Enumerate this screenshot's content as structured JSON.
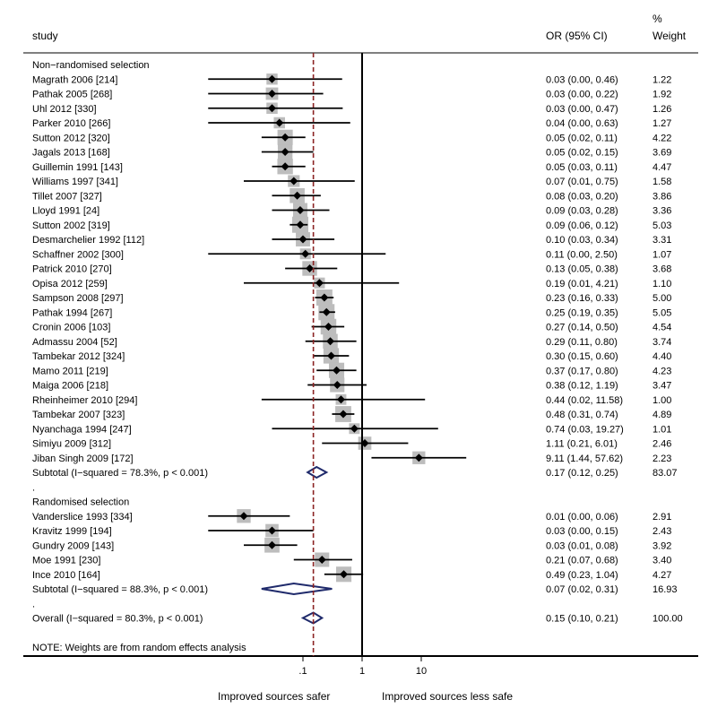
{
  "header": {
    "study_label": "study",
    "or_label": "OR (95% CI)",
    "weight_label_1": "%",
    "weight_label_2": "Weight"
  },
  "footer": {
    "note": "NOTE: Weights are from random effects analysis",
    "xlabel_left": "Improved sources safer",
    "xlabel_right": "Improved sources less safe"
  },
  "chart_data": {
    "type": "forest",
    "x_scale": "log",
    "x_ticks": [
      0.1,
      1,
      10
    ],
    "x_tick_labels": [
      ".1",
      "1",
      "10"
    ],
    "null_line": 1,
    "overall_line": 0.15,
    "rows": [
      {
        "kind": "group",
        "label": "Non−randomised selection"
      },
      {
        "kind": "study",
        "label": "Magrath 2006 [214]",
        "or": 0.03,
        "lo": 0.0,
        "hi": 0.46,
        "ci": "0.03 (0.00, 0.46)",
        "weight": "1.22"
      },
      {
        "kind": "study",
        "label": "Pathak 2005 [268]",
        "or": 0.03,
        "lo": 0.0,
        "hi": 0.22,
        "ci": "0.03 (0.00, 0.22)",
        "weight": "1.92"
      },
      {
        "kind": "study",
        "label": "Uhl 2012 [330]",
        "or": 0.03,
        "lo": 0.0,
        "hi": 0.47,
        "ci": "0.03 (0.00, 0.47)",
        "weight": "1.26"
      },
      {
        "kind": "study",
        "label": "Parker 2010 [266]",
        "or": 0.04,
        "lo": 0.0,
        "hi": 0.63,
        "ci": "0.04 (0.00, 0.63)",
        "weight": "1.27"
      },
      {
        "kind": "study",
        "label": "Sutton 2012 [320]",
        "or": 0.05,
        "lo": 0.02,
        "hi": 0.11,
        "ci": "0.05 (0.02, 0.11)",
        "weight": "4.22"
      },
      {
        "kind": "study",
        "label": "Jagals 2013 [168]",
        "or": 0.05,
        "lo": 0.02,
        "hi": 0.15,
        "ci": "0.05 (0.02, 0.15)",
        "weight": "3.69"
      },
      {
        "kind": "study",
        "label": "Guillemin 1991 [143]",
        "or": 0.05,
        "lo": 0.03,
        "hi": 0.11,
        "ci": "0.05 (0.03, 0.11)",
        "weight": "4.47"
      },
      {
        "kind": "study",
        "label": "Williams 1997 [341]",
        "or": 0.07,
        "lo": 0.01,
        "hi": 0.75,
        "ci": "0.07 (0.01, 0.75)",
        "weight": "1.58"
      },
      {
        "kind": "study",
        "label": "Tillet 2007 [327]",
        "or": 0.08,
        "lo": 0.03,
        "hi": 0.2,
        "ci": "0.08 (0.03, 0.20)",
        "weight": "3.86"
      },
      {
        "kind": "study",
        "label": "Lloyd 1991 [24]",
        "or": 0.09,
        "lo": 0.03,
        "hi": 0.28,
        "ci": "0.09 (0.03, 0.28)",
        "weight": "3.36"
      },
      {
        "kind": "study",
        "label": "Sutton 2002 [319]",
        "or": 0.09,
        "lo": 0.06,
        "hi": 0.12,
        "ci": "0.09 (0.06, 0.12)",
        "weight": "5.03"
      },
      {
        "kind": "study",
        "label": "Desmarchelier 1992 [112]",
        "or": 0.1,
        "lo": 0.03,
        "hi": 0.34,
        "ci": "0.10 (0.03, 0.34)",
        "weight": "3.31"
      },
      {
        "kind": "study",
        "label": "Schaffner 2002 [300]",
        "or": 0.11,
        "lo": 0.0,
        "hi": 2.5,
        "ci": "0.11 (0.00, 2.50)",
        "weight": "1.07"
      },
      {
        "kind": "study",
        "label": "Patrick 2010 [270]",
        "or": 0.13,
        "lo": 0.05,
        "hi": 0.38,
        "ci": "0.13 (0.05, 0.38)",
        "weight": "3.68"
      },
      {
        "kind": "study",
        "label": "Opisa 2012 [259]",
        "or": 0.19,
        "lo": 0.01,
        "hi": 4.21,
        "ci": "0.19 (0.01, 4.21)",
        "weight": "1.10"
      },
      {
        "kind": "study",
        "label": "Sampson 2008 [297]",
        "or": 0.23,
        "lo": 0.16,
        "hi": 0.33,
        "ci": "0.23 (0.16, 0.33)",
        "weight": "5.00"
      },
      {
        "kind": "study",
        "label": "Pathak 1994 [267]",
        "or": 0.25,
        "lo": 0.19,
        "hi": 0.35,
        "ci": "0.25 (0.19, 0.35)",
        "weight": "5.05"
      },
      {
        "kind": "study",
        "label": "Cronin 2006 [103]",
        "or": 0.27,
        "lo": 0.14,
        "hi": 0.5,
        "ci": "0.27 (0.14, 0.50)",
        "weight": "4.54"
      },
      {
        "kind": "study",
        "label": "Admassu 2004 [52]",
        "or": 0.29,
        "lo": 0.11,
        "hi": 0.8,
        "ci": "0.29 (0.11, 0.80)",
        "weight": "3.74"
      },
      {
        "kind": "study",
        "label": "Tambekar 2012 [324]",
        "or": 0.3,
        "lo": 0.15,
        "hi": 0.6,
        "ci": "0.30 (0.15, 0.60)",
        "weight": "4.40"
      },
      {
        "kind": "study",
        "label": "Mamo 2011 [219]",
        "or": 0.37,
        "lo": 0.17,
        "hi": 0.8,
        "ci": "0.37 (0.17, 0.80)",
        "weight": "4.23"
      },
      {
        "kind": "study",
        "label": "Maiga 2006 [218]",
        "or": 0.38,
        "lo": 0.12,
        "hi": 1.19,
        "ci": "0.38 (0.12, 1.19)",
        "weight": "3.47"
      },
      {
        "kind": "study",
        "label": "Rheinheimer 2010 [294]",
        "or": 0.44,
        "lo": 0.02,
        "hi": 11.58,
        "ci": "0.44 (0.02, 11.58)",
        "weight": "1.00"
      },
      {
        "kind": "study",
        "label": "Tambekar 2007 [323]",
        "or": 0.48,
        "lo": 0.31,
        "hi": 0.74,
        "ci": "0.48 (0.31, 0.74)",
        "weight": "4.89"
      },
      {
        "kind": "study",
        "label": "Nyanchaga 1994 [247]",
        "or": 0.74,
        "lo": 0.03,
        "hi": 19.27,
        "ci": "0.74 (0.03, 19.27)",
        "weight": "1.01"
      },
      {
        "kind": "study",
        "label": "Simiyu 2009 [312]",
        "or": 1.11,
        "lo": 0.21,
        "hi": 6.01,
        "ci": "1.11 (0.21, 6.01)",
        "weight": "2.46"
      },
      {
        "kind": "study",
        "label": "Jiban Singh 2009 [172]",
        "or": 9.11,
        "lo": 1.44,
        "hi": 57.62,
        "ci": "9.11 (1.44, 57.62)",
        "weight": "2.23"
      },
      {
        "kind": "subtotal",
        "label": "Subtotal  (I−squared = 78.3%, p < 0.001)",
        "or": 0.17,
        "lo": 0.12,
        "hi": 0.25,
        "ci": "0.17 (0.12, 0.25)",
        "weight": "83.07"
      },
      {
        "kind": "dot",
        "label": "."
      },
      {
        "kind": "group",
        "label": "Randomised selection"
      },
      {
        "kind": "study",
        "label": "Vanderslice 1993 [334]",
        "or": 0.01,
        "lo": 0.0,
        "hi": 0.06,
        "ci": "0.01 (0.00, 0.06)",
        "weight": "2.91"
      },
      {
        "kind": "study",
        "label": "Kravitz 1999 [194]",
        "or": 0.03,
        "lo": 0.0,
        "hi": 0.15,
        "ci": "0.03 (0.00, 0.15)",
        "weight": "2.43"
      },
      {
        "kind": "study",
        "label": "Gundry 2009 [143]",
        "or": 0.03,
        "lo": 0.01,
        "hi": 0.08,
        "ci": "0.03 (0.01, 0.08)",
        "weight": "3.92"
      },
      {
        "kind": "study",
        "label": "Moe 1991 [230]",
        "or": 0.21,
        "lo": 0.07,
        "hi": 0.68,
        "ci": "0.21 (0.07, 0.68)",
        "weight": "3.40"
      },
      {
        "kind": "study",
        "label": "Ince 2010 [164]",
        "or": 0.49,
        "lo": 0.23,
        "hi": 1.04,
        "ci": "0.49 (0.23, 1.04)",
        "weight": "4.27"
      },
      {
        "kind": "subtotal",
        "label": "Subtotal  (I−squared = 88.3%, p < 0.001)",
        "or": 0.07,
        "lo": 0.02,
        "hi": 0.31,
        "ci": "0.07 (0.02, 0.31)",
        "weight": "16.93"
      },
      {
        "kind": "dot",
        "label": "."
      },
      {
        "kind": "overall",
        "label": "Overall  (I−squared = 80.3%, p < 0.001)",
        "or": 0.15,
        "lo": 0.1,
        "hi": 0.21,
        "ci": "0.15 (0.10, 0.21)",
        "weight": "100.00"
      }
    ],
    "colors": {
      "box": "#bdbdbd",
      "diamond": "#1f2a6b",
      "overall_line": "#8b2323",
      "line": "#000000"
    }
  }
}
